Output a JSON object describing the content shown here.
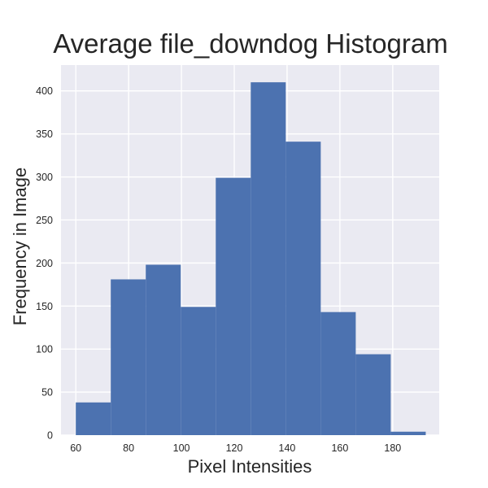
{
  "chart_data": {
    "type": "bar",
    "title": "Average file_downdog Histogram",
    "xlabel": "Pixel Intensities",
    "ylabel": "Frequency in Image",
    "xlim": [
      54.4,
      197.6
    ],
    "ylim": [
      0,
      430
    ],
    "x_ticks": [
      60,
      80,
      100,
      120,
      140,
      160,
      180
    ],
    "y_ticks": [
      0,
      50,
      100,
      150,
      200,
      250,
      300,
      350,
      400
    ],
    "grid": true,
    "bin_edges": [
      60,
      73.25,
      86.5,
      99.75,
      113,
      126.25,
      139.5,
      152.75,
      166,
      179.25,
      192.5
    ],
    "values": [
      38,
      181,
      198,
      149,
      299,
      410,
      341,
      143,
      94,
      4
    ],
    "colors": {
      "bar": "#4c72b0",
      "plot_background": "#eaeaf2",
      "grid": "#ffffff",
      "text": "#262626"
    }
  }
}
